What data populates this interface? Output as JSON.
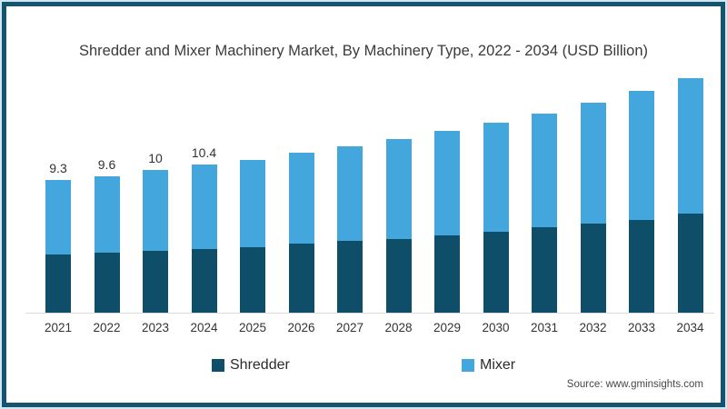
{
  "title": "Shredder and Mixer Machinery Market, By Machinery Type, 2022 - 2034 (USD Billion)",
  "source": "Source: www.gminsights.com",
  "colors": {
    "shredder": "#0e4e69",
    "mixer": "#43a6dd",
    "frame_border": "#16536f",
    "frame_outer_line": "#cde8f2",
    "axis_line": "#dcdcdc",
    "text": "#3a3a3a"
  },
  "legend": {
    "items": [
      {
        "label": "Shredder",
        "color": "#0e4e69"
      },
      {
        "label": "Mixer",
        "color": "#43a6dd"
      }
    ]
  },
  "chart_data": {
    "type": "bar",
    "stacked": true,
    "title": "Shredder and Mixer Machinery Market, By Machinery Type, 2022 - 2034 (USD Billion)",
    "categories": [
      "2021",
      "2022",
      "2023",
      "2024",
      "2025",
      "2026",
      "2027",
      "2028",
      "2029",
      "2030",
      "2031",
      "2032",
      "2033",
      "2034"
    ],
    "series": [
      {
        "name": "Shredder",
        "color": "#0e4e69",
        "values": [
          4.1,
          4.25,
          4.35,
          4.5,
          4.6,
          4.85,
          5.1,
          5.2,
          5.45,
          5.7,
          6.0,
          6.25,
          6.55,
          6.95
        ]
      },
      {
        "name": "Mixer",
        "color": "#43a6dd",
        "values": [
          5.2,
          5.35,
          5.65,
          5.9,
          6.1,
          6.35,
          6.55,
          6.95,
          7.3,
          7.6,
          7.95,
          8.45,
          9.0,
          9.45
        ]
      }
    ],
    "totals": [
      9.3,
      9.6,
      10.0,
      10.4,
      10.7,
      11.2,
      11.65,
      12.15,
      12.75,
      13.3,
      13.95,
      14.7,
      15.55,
      16.4
    ],
    "bar_labels": [
      "9.3",
      "9.6",
      "10",
      "10.4",
      "",
      "",
      "",
      "",
      "",
      "",
      "",
      "",
      "",
      ""
    ],
    "xlabel": "",
    "ylabel": "",
    "ylim": [
      0,
      17
    ],
    "grid": false,
    "legend_position": "bottom",
    "units": "USD Billion"
  }
}
